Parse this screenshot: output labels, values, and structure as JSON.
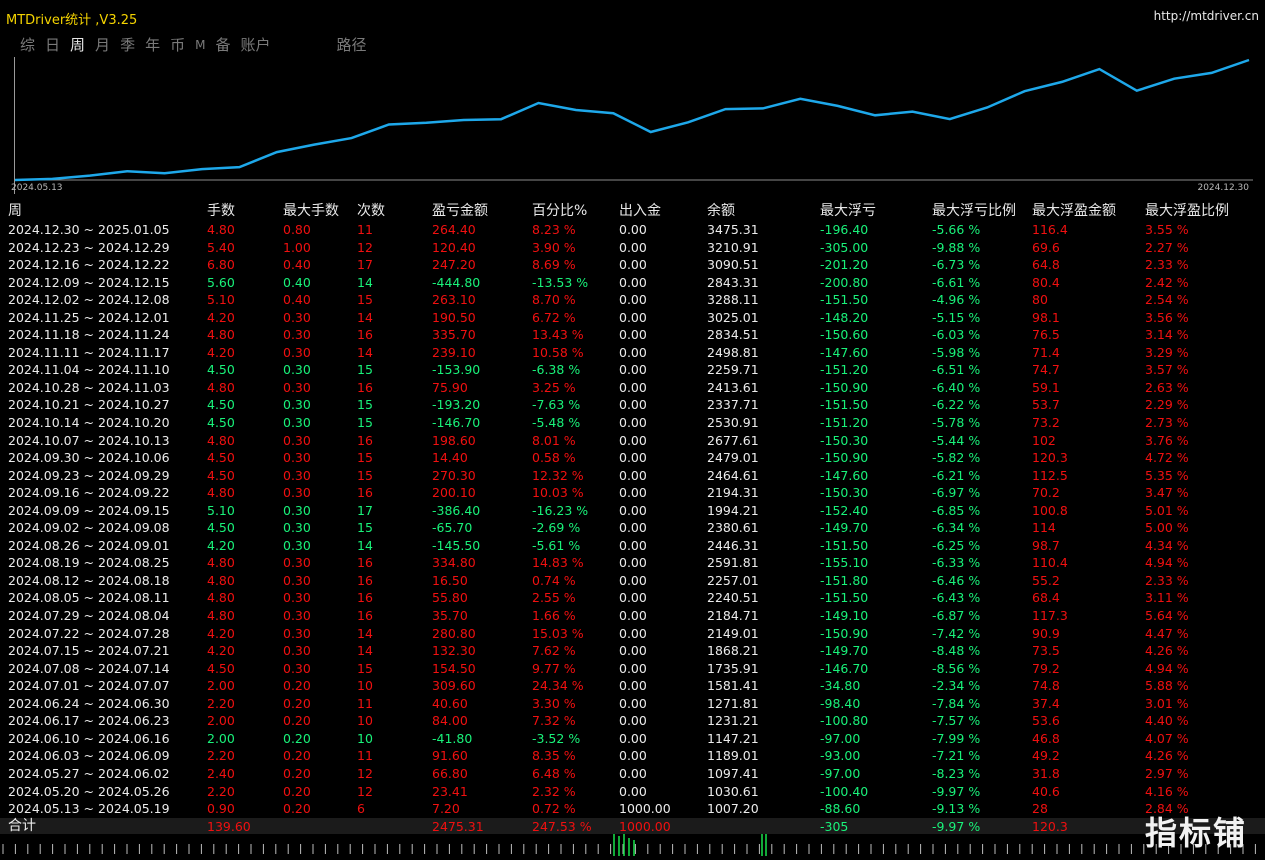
{
  "app_title": "MTDriver统计 ,V3.25",
  "url": "http://mtdriver.cn",
  "tabs": [
    "综",
    "日",
    "周",
    "月",
    "季",
    "年",
    "币",
    "M",
    "备",
    "账户",
    "路径"
  ],
  "active_tab": "周",
  "chart_data": {
    "type": "line",
    "x_start_label": "2024.05.13",
    "x_end_label": "2024.12.30",
    "values": [
      1007.2,
      1030.61,
      1097.41,
      1189.01,
      1147.21,
      1231.21,
      1271.81,
      1581.41,
      1735.91,
      1868.21,
      2149.01,
      2184.71,
      2240.51,
      2257.01,
      2591.81,
      2446.31,
      2380.61,
      1994.21,
      2194.31,
      2464.61,
      2479.01,
      2677.61,
      2530.91,
      2337.71,
      2413.61,
      2259.71,
      2498.81,
      2834.51,
      3025.01,
      3288.11,
      2843.31,
      3090.51,
      3210.91,
      3475.31
    ],
    "color": "#1ea8ea"
  },
  "headers": [
    "周",
    "手数",
    "最大手数",
    "次数",
    "盈亏金额",
    "百分比%",
    "出入金",
    "余额",
    "最大浮亏",
    "最大浮亏比例",
    "最大浮盈金额",
    "最大浮盈比例"
  ],
  "rows": [
    [
      "2024.12.30 ~ 2025.01.05",
      "4.80",
      "0.80",
      "11",
      "264.40",
      "8.23 %",
      "0.00",
      "3475.31",
      "-196.40",
      "-5.66 %",
      "116.4",
      "3.55 %"
    ],
    [
      "2024.12.23 ~ 2024.12.29",
      "5.40",
      "1.00",
      "12",
      "120.40",
      "3.90 %",
      "0.00",
      "3210.91",
      "-305.00",
      "-9.88 %",
      "69.6",
      "2.27 %"
    ],
    [
      "2024.12.16 ~ 2024.12.22",
      "6.80",
      "0.40",
      "17",
      "247.20",
      "8.69 %",
      "0.00",
      "3090.51",
      "-201.20",
      "-6.73 %",
      "64.8",
      "2.33 %"
    ],
    [
      "2024.12.09 ~ 2024.12.15",
      "5.60",
      "0.40",
      "14",
      "-444.80",
      "-13.53 %",
      "0.00",
      "2843.31",
      "-200.80",
      "-6.61 %",
      "80.4",
      "2.42 %"
    ],
    [
      "2024.12.02 ~ 2024.12.08",
      "5.10",
      "0.40",
      "15",
      "263.10",
      "8.70 %",
      "0.00",
      "3288.11",
      "-151.50",
      "-4.96 %",
      "80",
      "2.54 %"
    ],
    [
      "2024.11.25 ~ 2024.12.01",
      "4.20",
      "0.30",
      "14",
      "190.50",
      "6.72 %",
      "0.00",
      "3025.01",
      "-148.20",
      "-5.15 %",
      "98.1",
      "3.56 %"
    ],
    [
      "2024.11.18 ~ 2024.11.24",
      "4.80",
      "0.30",
      "16",
      "335.70",
      "13.43 %",
      "0.00",
      "2834.51",
      "-150.60",
      "-6.03 %",
      "76.5",
      "3.14 %"
    ],
    [
      "2024.11.11 ~ 2024.11.17",
      "4.20",
      "0.30",
      "14",
      "239.10",
      "10.58 %",
      "0.00",
      "2498.81",
      "-147.60",
      "-5.98 %",
      "71.4",
      "3.29 %"
    ],
    [
      "2024.11.04 ~ 2024.11.10",
      "4.50",
      "0.30",
      "15",
      "-153.90",
      "-6.38 %",
      "0.00",
      "2259.71",
      "-151.20",
      "-6.51 %",
      "74.7",
      "3.57 %"
    ],
    [
      "2024.10.28 ~ 2024.11.03",
      "4.80",
      "0.30",
      "16",
      "75.90",
      "3.25 %",
      "0.00",
      "2413.61",
      "-150.90",
      "-6.40 %",
      "59.1",
      "2.63 %"
    ],
    [
      "2024.10.21 ~ 2024.10.27",
      "4.50",
      "0.30",
      "15",
      "-193.20",
      "-7.63 %",
      "0.00",
      "2337.71",
      "-151.50",
      "-6.22 %",
      "53.7",
      "2.29 %"
    ],
    [
      "2024.10.14 ~ 2024.10.20",
      "4.50",
      "0.30",
      "15",
      "-146.70",
      "-5.48 %",
      "0.00",
      "2530.91",
      "-151.20",
      "-5.78 %",
      "73.2",
      "2.73 %"
    ],
    [
      "2024.10.07 ~ 2024.10.13",
      "4.80",
      "0.30",
      "16",
      "198.60",
      "8.01 %",
      "0.00",
      "2677.61",
      "-150.30",
      "-5.44 %",
      "102",
      "3.76 %"
    ],
    [
      "2024.09.30 ~ 2024.10.06",
      "4.50",
      "0.30",
      "15",
      "14.40",
      "0.58 %",
      "0.00",
      "2479.01",
      "-150.90",
      "-5.82 %",
      "120.3",
      "4.72 %"
    ],
    [
      "2024.09.23 ~ 2024.09.29",
      "4.50",
      "0.30",
      "15",
      "270.30",
      "12.32 %",
      "0.00",
      "2464.61",
      "-147.60",
      "-6.21 %",
      "112.5",
      "5.35 %"
    ],
    [
      "2024.09.16 ~ 2024.09.22",
      "4.80",
      "0.30",
      "16",
      "200.10",
      "10.03 %",
      "0.00",
      "2194.31",
      "-150.30",
      "-6.97 %",
      "70.2",
      "3.47 %"
    ],
    [
      "2024.09.09 ~ 2024.09.15",
      "5.10",
      "0.30",
      "17",
      "-386.40",
      "-16.23 %",
      "0.00",
      "1994.21",
      "-152.40",
      "-6.85 %",
      "100.8",
      "5.01 %"
    ],
    [
      "2024.09.02 ~ 2024.09.08",
      "4.50",
      "0.30",
      "15",
      "-65.70",
      "-2.69 %",
      "0.00",
      "2380.61",
      "-149.70",
      "-6.34 %",
      "114",
      "5.00 %"
    ],
    [
      "2024.08.26 ~ 2024.09.01",
      "4.20",
      "0.30",
      "14",
      "-145.50",
      "-5.61 %",
      "0.00",
      "2446.31",
      "-151.50",
      "-6.25 %",
      "98.7",
      "4.34 %"
    ],
    [
      "2024.08.19 ~ 2024.08.25",
      "4.80",
      "0.30",
      "16",
      "334.80",
      "14.83 %",
      "0.00",
      "2591.81",
      "-155.10",
      "-6.33 %",
      "110.4",
      "4.94 %"
    ],
    [
      "2024.08.12 ~ 2024.08.18",
      "4.80",
      "0.30",
      "16",
      "16.50",
      "0.74 %",
      "0.00",
      "2257.01",
      "-151.80",
      "-6.46 %",
      "55.2",
      "2.33 %"
    ],
    [
      "2024.08.05 ~ 2024.08.11",
      "4.80",
      "0.30",
      "16",
      "55.80",
      "2.55 %",
      "0.00",
      "2240.51",
      "-151.50",
      "-6.43 %",
      "68.4",
      "3.11 %"
    ],
    [
      "2024.07.29 ~ 2024.08.04",
      "4.80",
      "0.30",
      "16",
      "35.70",
      "1.66 %",
      "0.00",
      "2184.71",
      "-149.10",
      "-6.87 %",
      "117.3",
      "5.64 %"
    ],
    [
      "2024.07.22 ~ 2024.07.28",
      "4.20",
      "0.30",
      "14",
      "280.80",
      "15.03 %",
      "0.00",
      "2149.01",
      "-150.90",
      "-7.42 %",
      "90.9",
      "4.47 %"
    ],
    [
      "2024.07.15 ~ 2024.07.21",
      "4.20",
      "0.30",
      "14",
      "132.30",
      "7.62 %",
      "0.00",
      "1868.21",
      "-149.70",
      "-8.48 %",
      "73.5",
      "4.26 %"
    ],
    [
      "2024.07.08 ~ 2024.07.14",
      "4.50",
      "0.30",
      "15",
      "154.50",
      "9.77 %",
      "0.00",
      "1735.91",
      "-146.70",
      "-8.56 %",
      "79.2",
      "4.94 %"
    ],
    [
      "2024.07.01 ~ 2024.07.07",
      "2.00",
      "0.20",
      "10",
      "309.60",
      "24.34 %",
      "0.00",
      "1581.41",
      "-34.80",
      "-2.34 %",
      "74.8",
      "5.88 %"
    ],
    [
      "2024.06.24 ~ 2024.06.30",
      "2.20",
      "0.20",
      "11",
      "40.60",
      "3.30 %",
      "0.00",
      "1271.81",
      "-98.40",
      "-7.84 %",
      "37.4",
      "3.01 %"
    ],
    [
      "2024.06.17 ~ 2024.06.23",
      "2.00",
      "0.20",
      "10",
      "84.00",
      "7.32 %",
      "0.00",
      "1231.21",
      "-100.80",
      "-7.57 %",
      "53.6",
      "4.40 %"
    ],
    [
      "2024.06.10 ~ 2024.06.16",
      "2.00",
      "0.20",
      "10",
      "-41.80",
      "-3.52 %",
      "0.00",
      "1147.21",
      "-97.00",
      "-7.99 %",
      "46.8",
      "4.07 %"
    ],
    [
      "2024.06.03 ~ 2024.06.09",
      "2.20",
      "0.20",
      "11",
      "91.60",
      "8.35 %",
      "0.00",
      "1189.01",
      "-93.00",
      "-7.21 %",
      "49.2",
      "4.26 %"
    ],
    [
      "2024.05.27 ~ 2024.06.02",
      "2.40",
      "0.20",
      "12",
      "66.80",
      "6.48 %",
      "0.00",
      "1097.41",
      "-97.00",
      "-8.23 %",
      "31.8",
      "2.97 %"
    ],
    [
      "2024.05.20 ~ 2024.05.26",
      "2.20",
      "0.20",
      "12",
      "23.41",
      "2.32 %",
      "0.00",
      "1030.61",
      "-100.40",
      "-9.97 %",
      "40.6",
      "4.16 %"
    ],
    [
      "2024.05.13 ~ 2024.05.19",
      "0.90",
      "0.20",
      "6",
      "7.20",
      "0.72 %",
      "1000.00",
      "1007.20",
      "-88.60",
      "-9.13 %",
      "28",
      "2.84 %"
    ]
  ],
  "totals": [
    "合计",
    "139.60",
    "",
    "",
    "2475.31",
    "247.53 %",
    "1000.00",
    "",
    "-305",
    "-9.97 %",
    "120.3",
    ""
  ],
  "watermark": "指标铺"
}
